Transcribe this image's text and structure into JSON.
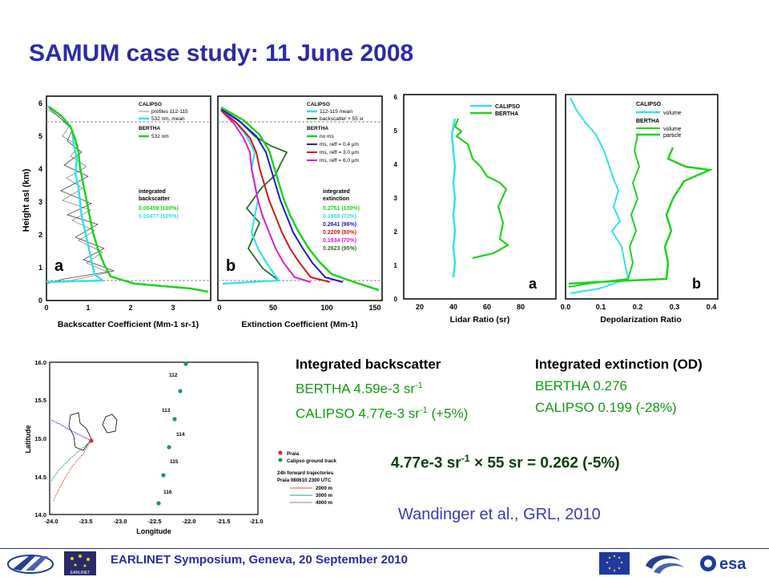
{
  "title": "SAMUM case study: 11 June 2008",
  "plot_a": {
    "ylabel": "Height asl (km)",
    "xlabel": "Backscatter Coefficient (Mm-1 sr-1)",
    "yticks": [
      "0",
      "1",
      "2",
      "3",
      "4",
      "5",
      "6"
    ],
    "xticks": [
      "0",
      "1",
      "2",
      "3"
    ],
    "panel": "a",
    "legend": [
      "CALIPSO",
      "profiles 112-115",
      "532 nm, mean",
      "BERTHA",
      "532 nm"
    ],
    "integrated_title": [
      "integrated",
      "backscatter"
    ],
    "values": [
      "0.00459 (100%)",
      "0.00477 (105%)"
    ]
  },
  "plot_b": {
    "xlabel": "Extinction Coefficient (Mm-1)",
    "xticks": [
      "0",
      "50",
      "100",
      "150"
    ],
    "panel": "b",
    "legend": [
      "CALIPSO",
      "112-115 mean",
      "backscatter × 55 sr",
      "BERTHA",
      "no ms",
      "ms, reff = 0.4 µm",
      "ms, reff = 3.0 µm",
      "ms, reff = 6.0 µm"
    ],
    "integrated_title": [
      "integrated",
      "extinction"
    ],
    "values": [
      "0.2761 (100%)",
      "0.1988 (72%)",
      "0.2641 (96%)",
      "0.2209 (80%)",
      "0.1934 (70%)",
      "0.2623 (95%)"
    ]
  },
  "plot_c": {
    "xlabel": "Lidar Ratio (sr)",
    "xticks": [
      "20",
      "40",
      "60",
      "80"
    ],
    "yticks": [
      "0",
      "1",
      "2",
      "3",
      "4",
      "5",
      "6"
    ],
    "panel": "a",
    "legend": [
      "CALIPSO",
      "BERTHA"
    ]
  },
  "plot_d": {
    "xlabel": "Depolarization Ratio",
    "xticks": [
      "0.0",
      "0.1",
      "0.2",
      "0.3",
      "0.4"
    ],
    "panel": "b",
    "legend": [
      "CALIPSO",
      "volume",
      "BERTHA",
      "volume",
      "particle"
    ]
  },
  "map": {
    "ylabel": "Latitude",
    "xlabel": "Longitude",
    "yticks": [
      "16.0",
      "15.5",
      "15.0",
      "14.5",
      "14.0"
    ],
    "xticks": [
      "-24.0",
      "-23.5",
      "-23.0",
      "-22.5",
      "-22.0",
      "-21.5",
      "-21.0"
    ],
    "track_labels": [
      "112",
      "113",
      "114",
      "115",
      "116"
    ],
    "legend": [
      "Praia",
      "Calipso ground track",
      "24h forward trajectories",
      "Praia 080610 2300 UTC",
      "2000 m",
      "3000 m",
      "4000 m"
    ]
  },
  "stats": {
    "backscatter_head": "Integrated backscatter",
    "backscatter_bertha": "BERTHA   4.59e-3 sr",
    "backscatter_bertha_sup": "-1",
    "backscatter_calipso": "CALIPSO  4.77e-3 sr",
    "backscatter_calipso_sup": "-1",
    "backscatter_calipso_suffix": " (+5%)",
    "extinction_head": "Integrated extinction (OD)",
    "extinction_bertha": "BERTHA   0.276",
    "extinction_calipso": "CALIPSO  0.199 (-28%)"
  },
  "formula": {
    "part1": "4.77e-3 sr",
    "sup": "-1",
    "part2": " × 55 sr = 0.262 (-5%)"
  },
  "citation": "Wandinger et al., GRL, 2010",
  "footer": "EARLINET Symposium, Geneva, 20 September 2010",
  "logos": [
    "ift-logo",
    "earlinet-logo",
    "eu-flag-logo",
    "swirl-logo",
    "esa-logo"
  ],
  "logo_text": {
    "earlinet": "EARLINET",
    "esa": "esa"
  },
  "colors": {
    "title": "#2b2ba6",
    "green": "#1fd21f",
    "cyan": "#37e0e8",
    "stats_green": "#129a12"
  }
}
